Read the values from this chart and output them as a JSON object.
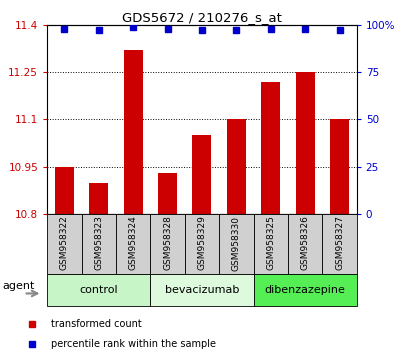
{
  "title": "GDS5672 / 210276_s_at",
  "samples": [
    "GSM958322",
    "GSM958323",
    "GSM958324",
    "GSM958328",
    "GSM958329",
    "GSM958330",
    "GSM958325",
    "GSM958326",
    "GSM958327"
  ],
  "bar_values": [
    10.95,
    10.9,
    11.32,
    10.93,
    11.05,
    11.1,
    11.22,
    11.25,
    11.1
  ],
  "percentile_values": [
    98,
    97,
    99,
    98,
    97,
    97,
    98,
    98,
    97
  ],
  "ylim_left": [
    10.8,
    11.4
  ],
  "ylim_right": [
    0,
    100
  ],
  "yticks_left": [
    10.8,
    10.95,
    11.1,
    11.25,
    11.4
  ],
  "yticks_right": [
    0,
    25,
    50,
    75,
    100
  ],
  "ytick_labels_left": [
    "10.8",
    "10.95",
    "11.1",
    "11.25",
    "11.4"
  ],
  "ytick_labels_right": [
    "0",
    "25",
    "50",
    "75",
    "100%"
  ],
  "groups": [
    {
      "label": "control",
      "indices": [
        0,
        1,
        2
      ],
      "color": "#c8f5c8"
    },
    {
      "label": "bevacizumab",
      "indices": [
        3,
        4,
        5
      ],
      "color": "#ddfadd"
    },
    {
      "label": "dibenzazepine",
      "indices": [
        6,
        7,
        8
      ],
      "color": "#55ee55"
    }
  ],
  "bar_color": "#cc0000",
  "dot_color": "#0000cc",
  "bar_base": 10.8,
  "sample_bg_color": "#d0d0d0",
  "agent_label": "agent",
  "gridline_ticks": [
    10.95,
    11.1,
    11.25
  ],
  "legend_items": [
    {
      "label": "transformed count",
      "color": "#cc0000"
    },
    {
      "label": "percentile rank within the sample",
      "color": "#0000cc"
    }
  ]
}
